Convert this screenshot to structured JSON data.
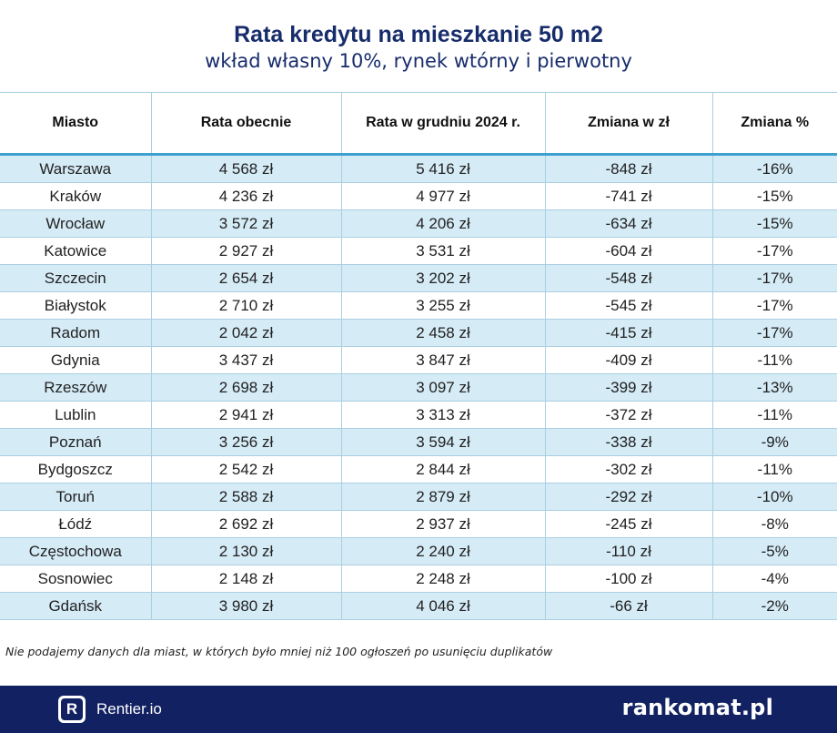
{
  "chart_data": {
    "type": "table",
    "title": "Rata kredytu na mieszkanie 50 m2",
    "subtitle": "wkład własny 10%, rynek wtórny i pierwotny",
    "columns": [
      "Miasto",
      "Rata obecnie",
      "Rata w grudniu 2024 r.",
      "Zmiana w zł",
      "Zmiana %"
    ],
    "rows": [
      [
        "Warszawa",
        "4 568 zł",
        "5 416 zł",
        "-848 zł",
        "-16%"
      ],
      [
        "Kraków",
        "4 236 zł",
        "4 977 zł",
        "-741 zł",
        "-15%"
      ],
      [
        "Wrocław",
        "3 572 zł",
        "4 206 zł",
        "-634 zł",
        "-15%"
      ],
      [
        "Katowice",
        "2 927 zł",
        "3 531 zł",
        "-604 zł",
        "-17%"
      ],
      [
        "Szczecin",
        "2 654 zł",
        "3 202 zł",
        "-548 zł",
        "-17%"
      ],
      [
        "Białystok",
        "2 710 zł",
        "3 255 zł",
        "-545 zł",
        "-17%"
      ],
      [
        "Radom",
        "2 042 zł",
        "2 458 zł",
        "-415 zł",
        "-17%"
      ],
      [
        "Gdynia",
        "3 437 zł",
        "3 847 zł",
        "-409 zł",
        "-11%"
      ],
      [
        "Rzeszów",
        "2 698 zł",
        "3 097 zł",
        "-399 zł",
        "-13%"
      ],
      [
        "Lublin",
        "2 941 zł",
        "3 313 zł",
        "-372 zł",
        "-11%"
      ],
      [
        "Poznań",
        "3 256 zł",
        "3 594 zł",
        "-338 zł",
        "-9%"
      ],
      [
        "Bydgoszcz",
        "2 542 zł",
        "2 844 zł",
        "-302 zł",
        "-11%"
      ],
      [
        "Toruń",
        "2 588 zł",
        "2 879 zł",
        "-292 zł",
        "-10%"
      ],
      [
        "Łódź",
        "2 692 zł",
        "2 937 zł",
        "-245 zł",
        "-8%"
      ],
      [
        "Częstochowa",
        "2 130 zł",
        "2 240 zł",
        "-110 zł",
        "-5%"
      ],
      [
        "Sosnowiec",
        "2 148 zł",
        "2 248 zł",
        "-100 zł",
        "-4%"
      ],
      [
        "Gdańsk",
        "3 980 zł",
        "4 046 zł",
        "-66 zł",
        "-2%"
      ]
    ],
    "row_colors": [
      "#d5ebf6",
      "#ffffff"
    ],
    "header_rule_color": "#3b9fcf"
  },
  "note": "Nie podajemy danych dla miast, w których było mniej niż 100 ogłoszeń po usunięciu duplikatów",
  "footer": {
    "left_logo_letter": "R",
    "left_brand": "Rentier.io",
    "right_brand": "rankomat.pl",
    "background": "#122161"
  },
  "colors": {
    "title": "#172c6b"
  }
}
